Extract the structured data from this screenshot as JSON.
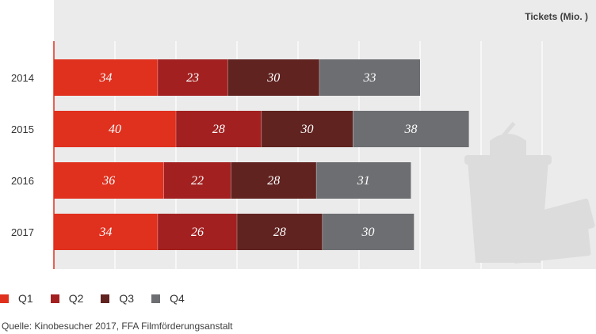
{
  "chart_data": {
    "type": "bar",
    "orientation": "horizontal",
    "stacked": true,
    "unit_label": "Tickets (Mio. )",
    "categories": [
      "2014",
      "2015",
      "2016",
      "2017"
    ],
    "series": [
      {
        "name": "Q1",
        "values": [
          34,
          40,
          36,
          34
        ],
        "color": "#e0301e"
      },
      {
        "name": "Q2",
        "values": [
          23,
          28,
          22,
          26
        ],
        "color": "#a32020"
      },
      {
        "name": "Q3",
        "values": [
          30,
          30,
          28,
          28
        ],
        "color": "#602320"
      },
      {
        "name": "Q4",
        "values": [
          33,
          38,
          31,
          30
        ],
        "color": "#6d6e71"
      }
    ],
    "xlim": [
      0,
      180
    ],
    "grid": true,
    "legend_position": "bottom-left",
    "source": "Quelle: Kinobesucher 2017, FFA Filmförderungsanstalt"
  }
}
